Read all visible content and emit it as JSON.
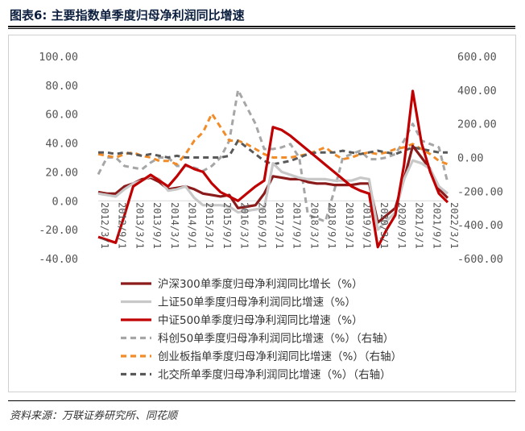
{
  "figure": {
    "title": "图表6:  主要指数单季度归母净利润同比增速",
    "source": "资料来源：万联证券研究所、同花顺"
  },
  "chart_data": {
    "type": "line",
    "x": [
      "2012/3/1",
      "2012/6/1",
      "2012/9/1",
      "2012/12/1",
      "2013/3/1",
      "2013/6/1",
      "2013/9/1",
      "2013/12/1",
      "2014/3/1",
      "2014/6/1",
      "2014/9/1",
      "2014/12/1",
      "2015/3/1",
      "2015/6/1",
      "2015/9/1",
      "2015/12/1",
      "2016/3/1",
      "2016/6/1",
      "2016/9/1",
      "2016/12/1",
      "2017/3/1",
      "2017/6/1",
      "2017/9/1",
      "2017/12/1",
      "2018/3/1",
      "2018/6/1",
      "2018/9/1",
      "2018/12/1",
      "2019/3/1",
      "2019/6/1",
      "2019/9/1",
      "2019/12/1",
      "2020/3/1",
      "2020/6/1",
      "2020/9/1",
      "2020/12/1",
      "2021/3/1",
      "2021/6/1",
      "2021/9/1",
      "2021/12/1",
      "2022/3/1"
    ],
    "x_tick_labels": [
      "2012/3/1",
      "2012/9/1",
      "2013/3/1",
      "2013/9/1",
      "2014/3/1",
      "2014/9/1",
      "2015/3/1",
      "2015/9/1",
      "2016/3/1",
      "2016/9/1",
      "2017/3/1",
      "2017/9/1",
      "2018/3/1",
      "2018/9/1",
      "2019/3/1",
      "2019/9/1",
      "2020/3/1",
      "2020/9/1",
      "2021/3/1",
      "2021/9/1",
      "2022/3/1"
    ],
    "left_axis": {
      "ylim": [
        -40,
        100
      ],
      "ticks": [
        "100.00",
        "80.00",
        "60.00",
        "40.00",
        "20.00",
        "0.00",
        "-20.00",
        "-40.00"
      ]
    },
    "right_axis": {
      "ylim": [
        -600,
        600
      ],
      "ticks": [
        "600.00",
        "400.00",
        "200.00",
        "0.00",
        "-200.00",
        "-400.00",
        "-600.00"
      ]
    },
    "series": [
      {
        "name": "沪深300单季度归母净利润同比增长（%）",
        "axis": "left",
        "color": "#8b1a1a",
        "style": "solid",
        "values": [
          6,
          5,
          5,
          10,
          12,
          15,
          16,
          13,
          8,
          9,
          10,
          8,
          5,
          4,
          3,
          4,
          -5,
          -4,
          -3,
          5,
          17,
          16,
          15,
          15,
          13,
          12,
          12,
          11,
          11,
          11,
          12,
          12,
          -15,
          -10,
          -5,
          15,
          38,
          30,
          22,
          8,
          2
        ]
      },
      {
        "name": "上证50单季度归母净利润同比增速（%）",
        "axis": "left",
        "color": "#c8c8c8",
        "style": "solid",
        "values": [
          5,
          4,
          3,
          8,
          12,
          14,
          17,
          15,
          7,
          8,
          10,
          2,
          -3,
          -3,
          -3,
          -4,
          -8,
          -7,
          -6,
          -5,
          26,
          20,
          18,
          16,
          15,
          15,
          15,
          14,
          14,
          14,
          16,
          15,
          -20,
          -14,
          -8,
          15,
          28,
          26,
          22,
          10,
          5
        ]
      },
      {
        "name": "中证500单季度归母净利润同比增速（%）",
        "axis": "left",
        "color": "#c00000",
        "style": "solid",
        "values": [
          -25,
          -27,
          -29,
          -10,
          10,
          14,
          18,
          14,
          10,
          17,
          25,
          22,
          20,
          12,
          6,
          3,
          0,
          5,
          10,
          14,
          51,
          49,
          45,
          40,
          35,
          30,
          25,
          20,
          15,
          10,
          7,
          5,
          -32,
          -20,
          -10,
          25,
          76,
          40,
          20,
          5,
          -1
        ]
      },
      {
        "name": "科创50单季度归母净利润同比增速（%）（右轴）",
        "axis": "right",
        "color": "#a6a6a6",
        "style": "dash",
        "values": [
          -100,
          0,
          0,
          -50,
          -60,
          -70,
          -30,
          0,
          0,
          -50,
          -50,
          -60,
          -80,
          -50,
          0,
          100,
          400,
          300,
          200,
          50,
          50,
          60,
          80,
          0,
          -340,
          -360,
          -380,
          -200,
          0,
          20,
          40,
          -10,
          -10,
          0,
          20,
          100,
          200,
          100,
          80,
          60,
          -150
        ]
      },
      {
        "name": "创业板指单季度归母净利润同比增速（%）（右轴）",
        "axis": "right",
        "color": "#f28c28",
        "style": "dash",
        "values": [
          20,
          10,
          0,
          20,
          30,
          10,
          0,
          -20,
          -20,
          -40,
          20,
          100,
          150,
          260,
          180,
          100,
          100,
          80,
          50,
          20,
          0,
          0,
          0,
          10,
          20,
          40,
          60,
          20,
          -10,
          0,
          20,
          30,
          20,
          30,
          50,
          60,
          80,
          50,
          20,
          -20,
          -40
        ]
      },
      {
        "name": "北交所单季度归母净利润同比增速（%）（右轴）",
        "axis": "right",
        "color": "#595959",
        "style": "dash",
        "values": [
          30,
          30,
          20,
          30,
          20,
          10,
          20,
          10,
          0,
          10,
          0,
          0,
          0,
          0,
          0,
          10,
          100,
          60,
          20,
          -20,
          -40,
          -30,
          -20,
          0,
          20,
          30,
          30,
          30,
          40,
          30,
          20,
          30,
          40,
          30,
          20,
          40,
          60,
          50,
          40,
          30,
          30
        ]
      }
    ],
    "legend_position": "bottom",
    "grid": false
  }
}
